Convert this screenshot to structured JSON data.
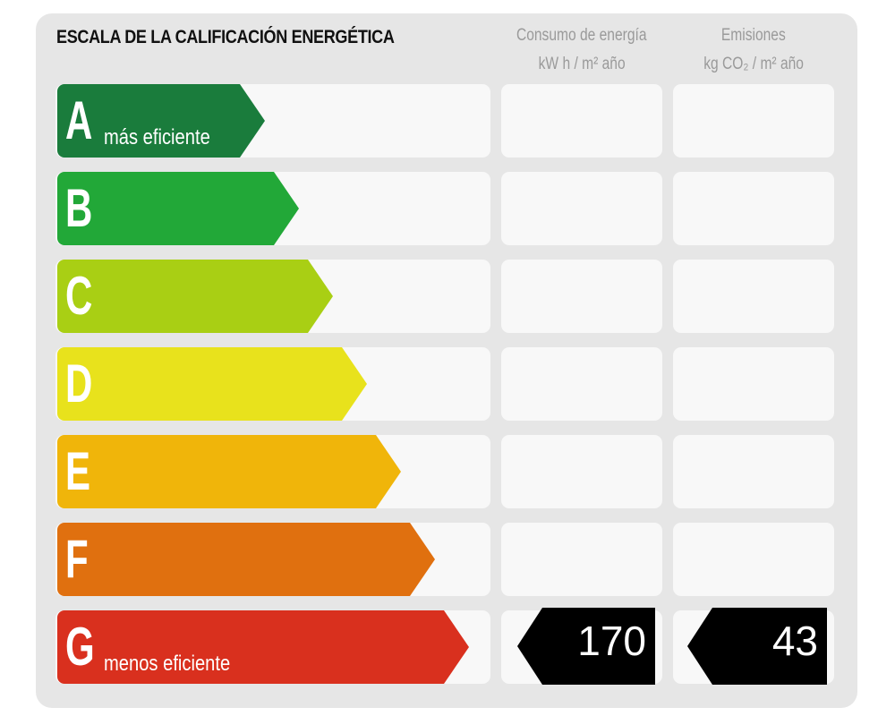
{
  "header": {
    "title": "ESCALA DE LA CALIFICACIÓN ENERGÉTICA",
    "consumo_line1": "Consumo de energía",
    "consumo_line2": "kW h / m² año",
    "emisiones_line1": "Emisiones",
    "emisiones_line2": "kg CO₂ / m² año"
  },
  "scale": [
    {
      "letter": "A",
      "label": "más eficiente",
      "color": "#1a7c3c"
    },
    {
      "letter": "B",
      "label": "",
      "color": "#22a838"
    },
    {
      "letter": "C",
      "label": "",
      "color": "#a9cf14"
    },
    {
      "letter": "D",
      "label": "",
      "color": "#e8e21c"
    },
    {
      "letter": "E",
      "label": "",
      "color": "#f0b50a"
    },
    {
      "letter": "F",
      "label": "",
      "color": "#e0700f"
    },
    {
      "letter": "G",
      "label": "menos eficiente",
      "color": "#d9301e"
    }
  ],
  "rating": {
    "row": "G",
    "consumo_value": "170",
    "emisiones_value": "43",
    "tag_color": "#000000"
  }
}
